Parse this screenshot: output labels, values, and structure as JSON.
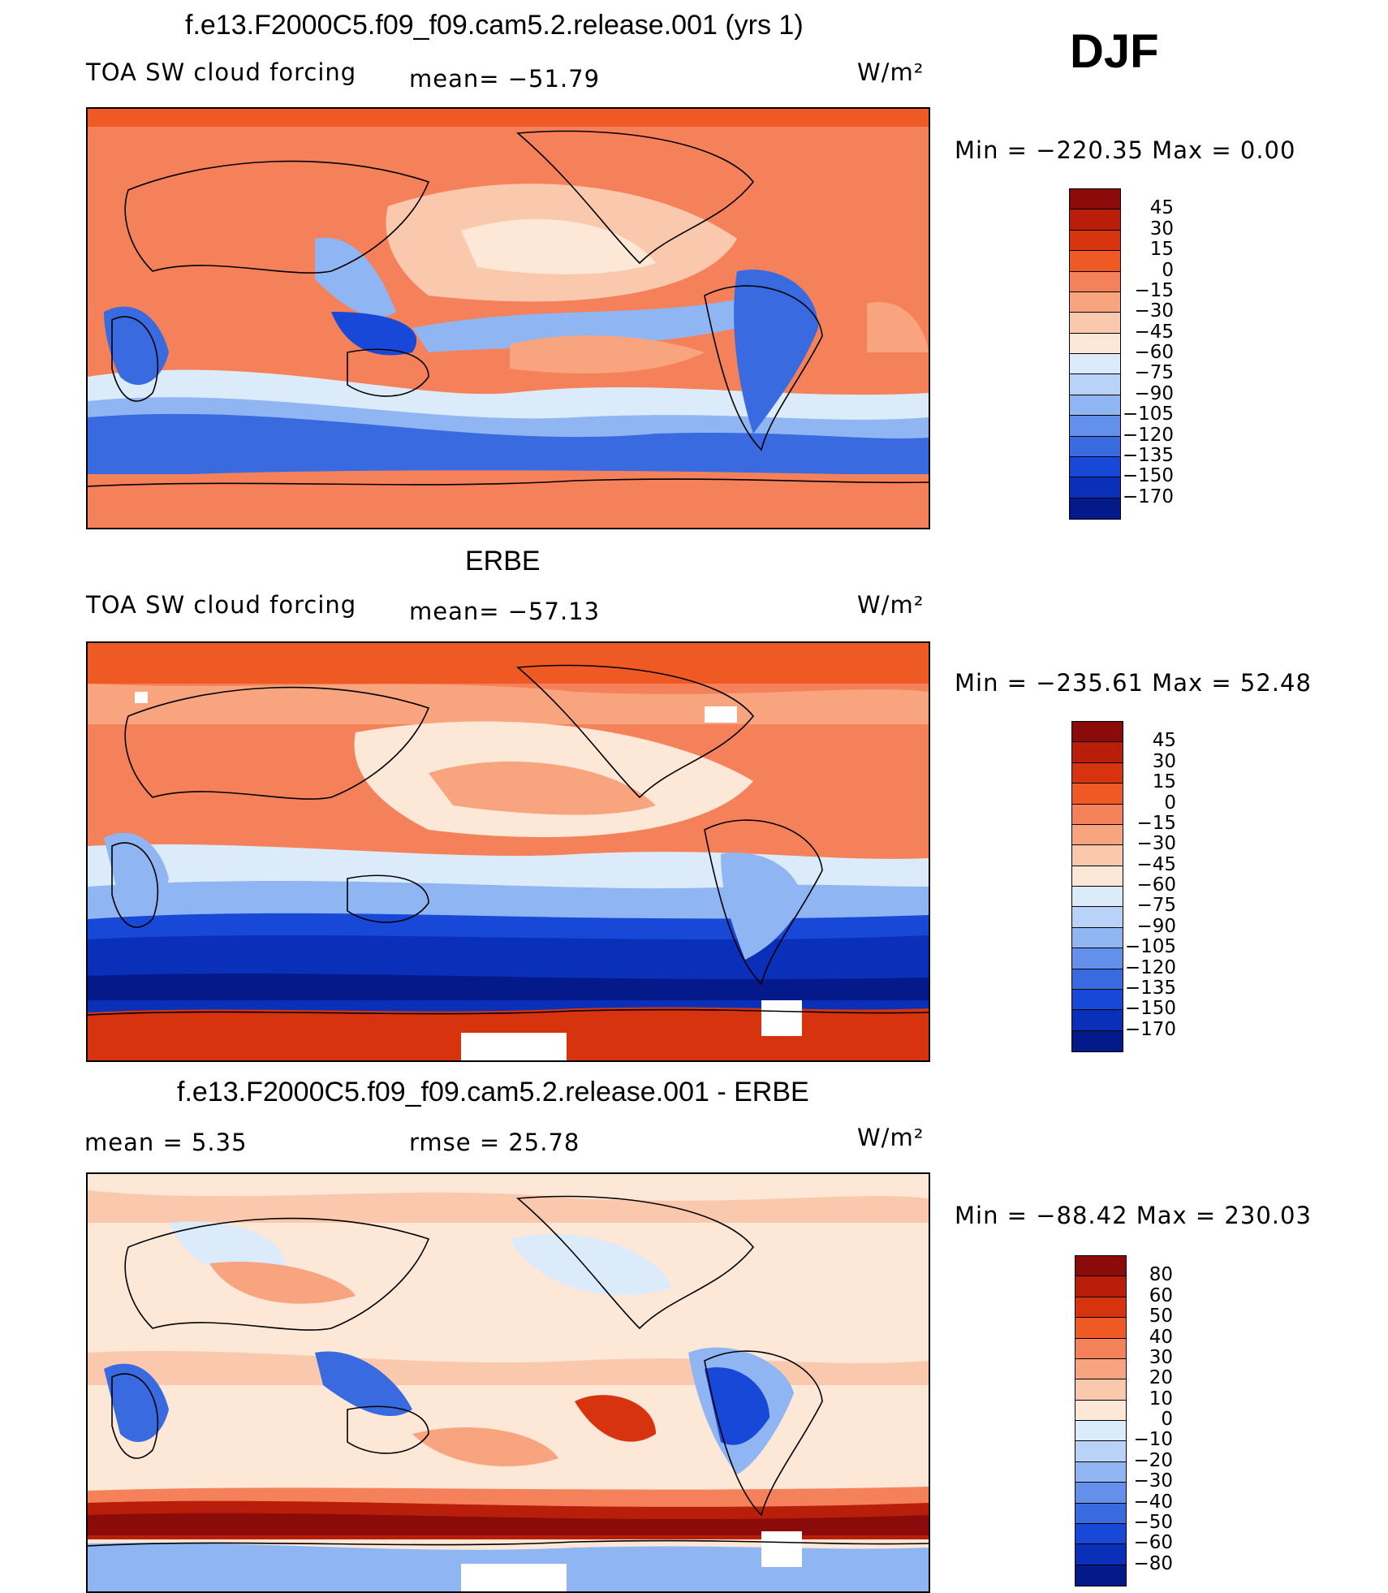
{
  "season": "DJF",
  "units": "W/m²",
  "panels": [
    {
      "title": "f.e13.F2000C5.f09_f09.cam5.2.release.001 (yrs 1)",
      "variable": "TOA SW cloud forcing",
      "stat1": "mean= −51.79",
      "stat2": "",
      "min_max": "Min  =  −220.35  Max  =     0.00",
      "colorbar": {
        "colors": [
          "#8b0a0a",
          "#b91e0b",
          "#d8330f",
          "#ef5a24",
          "#f5815a",
          "#f8a47f",
          "#fac9ad",
          "#fde7d7",
          "#dcebfa",
          "#b8d3f7",
          "#8fb6f2",
          "#6390ea",
          "#3a6ae0",
          "#1848d8",
          "#0a2fb8",
          "#041a8a"
        ],
        "labels": [
          "45",
          "30",
          "15",
          "0",
          "−15",
          "−30",
          "−45",
          "−60",
          "−75",
          "−90",
          "−105",
          "−120",
          "−135",
          "−150",
          "−170"
        ]
      }
    },
    {
      "title": "ERBE",
      "variable": "TOA SW cloud forcing",
      "stat1": "mean= −57.13",
      "stat2": "",
      "min_max": "Min  =  −235.61  Max  =   52.48",
      "colorbar": {
        "colors": [
          "#8b0a0a",
          "#b91e0b",
          "#d8330f",
          "#ef5a24",
          "#f5815a",
          "#f8a47f",
          "#fac9ad",
          "#fde7d7",
          "#dcebfa",
          "#b8d3f7",
          "#8fb6f2",
          "#6390ea",
          "#3a6ae0",
          "#1848d8",
          "#0a2fb8",
          "#041a8a"
        ],
        "labels": [
          "45",
          "30",
          "15",
          "0",
          "−15",
          "−30",
          "−45",
          "−60",
          "−75",
          "−90",
          "−105",
          "−120",
          "−135",
          "−150",
          "−170"
        ]
      }
    },
    {
      "title": "f.e13.F2000C5.f09_f09.cam5.2.release.001 - ERBE",
      "variable": "mean  =     5.35",
      "stat1": "rmse  =    25.78",
      "stat2": "",
      "min_max": "Min  =  −88.42  Max  =  230.03",
      "colorbar": {
        "colors": [
          "#8b0a0a",
          "#b91e0b",
          "#d8330f",
          "#ef5a24",
          "#f5815a",
          "#f8a47f",
          "#fac9ad",
          "#fde7d7",
          "#dcebfa",
          "#b8d3f7",
          "#8fb6f2",
          "#6390ea",
          "#3a6ae0",
          "#1848d8",
          "#0a2fb8",
          "#041a8a"
        ],
        "labels": [
          "80",
          "60",
          "50",
          "40",
          "30",
          "20",
          "10",
          "0",
          "−10",
          "−20",
          "−30",
          "−40",
          "−50",
          "−60",
          "−80"
        ]
      }
    }
  ]
}
